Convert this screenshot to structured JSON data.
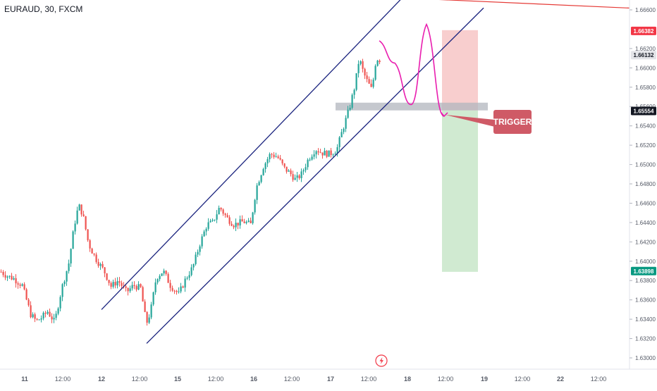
{
  "symbol": "EURAUD, 30, FXCM",
  "colors": {
    "up": "#26a69a",
    "down": "#ef5350",
    "channel": "#1a237e",
    "resistance_line": "#e53935",
    "path": "#e91eaf",
    "zone": "#b2b5be",
    "stop_zone": "#f7c6c6",
    "target_zone": "#c8e6c9",
    "trigger_box": "#cf5a66",
    "axis_text": "#555a66"
  },
  "icons": [
    "lightning-icon"
  ],
  "annotation": {
    "trigger_label": "TRIGGER"
  },
  "price_tags": [
    {
      "label": "1.66382",
      "value": 1.66382,
      "bg": "#f23645"
    },
    {
      "label": "1.66132",
      "value": 1.66132,
      "bg": "#e3e4e8",
      "fg": "#131722"
    },
    {
      "label": "1.65554",
      "value": 1.65554,
      "bg": "#131722"
    },
    {
      "label": "1.63898",
      "value": 1.63898,
      "bg": "#089981"
    }
  ],
  "chart_data": {
    "type": "candlestick",
    "title": "EURAUD, 30, FXCM",
    "xlabel": "",
    "ylabel": "",
    "y_ticks": [
      "1.66600",
      "1.66200",
      "1.66000",
      "1.65800",
      "1.65600",
      "1.65400",
      "1.65200",
      "1.65000",
      "1.64800",
      "1.64600",
      "1.64400",
      "1.64200",
      "1.64000",
      "1.63800",
      "1.63600",
      "1.63400",
      "1.63200",
      "1.63000"
    ],
    "y_range": [
      1.6295,
      1.6675
    ],
    "x_ticks": [
      "11",
      "12:00",
      "12",
      "12:00",
      "15",
      "12:00",
      "16",
      "12:00",
      "17",
      "12:00",
      "18",
      "12:00",
      "19",
      "12:00",
      "22",
      "12:00"
    ],
    "price_path": [
      [
        0,
        1.6389
      ],
      [
        8,
        1.6385
      ],
      [
        18,
        1.6382
      ],
      [
        30,
        1.6375
      ],
      [
        42,
        1.6345
      ],
      [
        50,
        1.6338
      ],
      [
        58,
        1.6342
      ],
      [
        66,
        1.6348
      ],
      [
        76,
        1.6337
      ],
      [
        86,
        1.6372
      ],
      [
        96,
        1.6398
      ],
      [
        104,
        1.6438
      ],
      [
        110,
        1.6458
      ],
      [
        116,
        1.6448
      ],
      [
        124,
        1.6418
      ],
      [
        134,
        1.6403
      ],
      [
        146,
        1.639
      ],
      [
        156,
        1.6374
      ],
      [
        166,
        1.638
      ],
      [
        178,
        1.6368
      ],
      [
        188,
        1.6375
      ],
      [
        198,
        1.6372
      ],
      [
        206,
        1.6335
      ],
      [
        212,
        1.6348
      ],
      [
        220,
        1.6383
      ],
      [
        230,
        1.639
      ],
      [
        240,
        1.6375
      ],
      [
        252,
        1.6366
      ],
      [
        262,
        1.6382
      ],
      [
        272,
        1.6394
      ],
      [
        282,
        1.6418
      ],
      [
        292,
        1.6438
      ],
      [
        300,
        1.644
      ],
      [
        310,
        1.6456
      ],
      [
        320,
        1.6445
      ],
      [
        330,
        1.6438
      ],
      [
        344,
        1.6441
      ],
      [
        354,
        1.6438
      ],
      [
        362,
        1.6476
      ],
      [
        372,
        1.6498
      ],
      [
        382,
        1.6511
      ],
      [
        392,
        1.6508
      ],
      [
        402,
        1.6496
      ],
      [
        410,
        1.6491
      ],
      [
        418,
        1.6484
      ],
      [
        426,
        1.649
      ],
      [
        436,
        1.6506
      ],
      [
        446,
        1.6516
      ],
      [
        456,
        1.6512
      ],
      [
        466,
        1.6511
      ],
      [
        476,
        1.6515
      ],
      [
        484,
        1.6535
      ],
      [
        494,
        1.6558
      ],
      [
        502,
        1.6582
      ],
      [
        508,
        1.661
      ],
      [
        514,
        1.6595
      ],
      [
        520,
        1.6585
      ],
      [
        526,
        1.6577
      ],
      [
        532,
        1.661
      ],
      [
        538,
        1.6608
      ]
    ],
    "drawings": {
      "channel_upper": [
        [
          144,
          1.635
        ],
        [
          574,
          1.6675
        ]
      ],
      "channel_lower": [
        [
          208,
          1.6315
        ],
        [
          686,
          1.6662
        ]
      ],
      "resistance": [
        [
          488,
          1.6675
        ],
        [
          920,
          1.6661
        ]
      ],
      "support_zone": {
        "x": [
          476,
          692
        ],
        "y": [
          1.6556,
          1.6564
        ]
      },
      "stop_zone": {
        "x": [
          627,
          678
        ],
        "y": [
          1.6556,
          1.6639
        ]
      },
      "target_zone": {
        "x": [
          627,
          678
        ],
        "y": [
          1.6389,
          1.6556
        ]
      },
      "projected_path": [
        [
          538,
          1.6628
        ],
        [
          560,
          1.6605
        ],
        [
          583,
          1.6562
        ],
        [
          605,
          1.6645
        ],
        [
          630,
          1.655
        ]
      ]
    }
  }
}
